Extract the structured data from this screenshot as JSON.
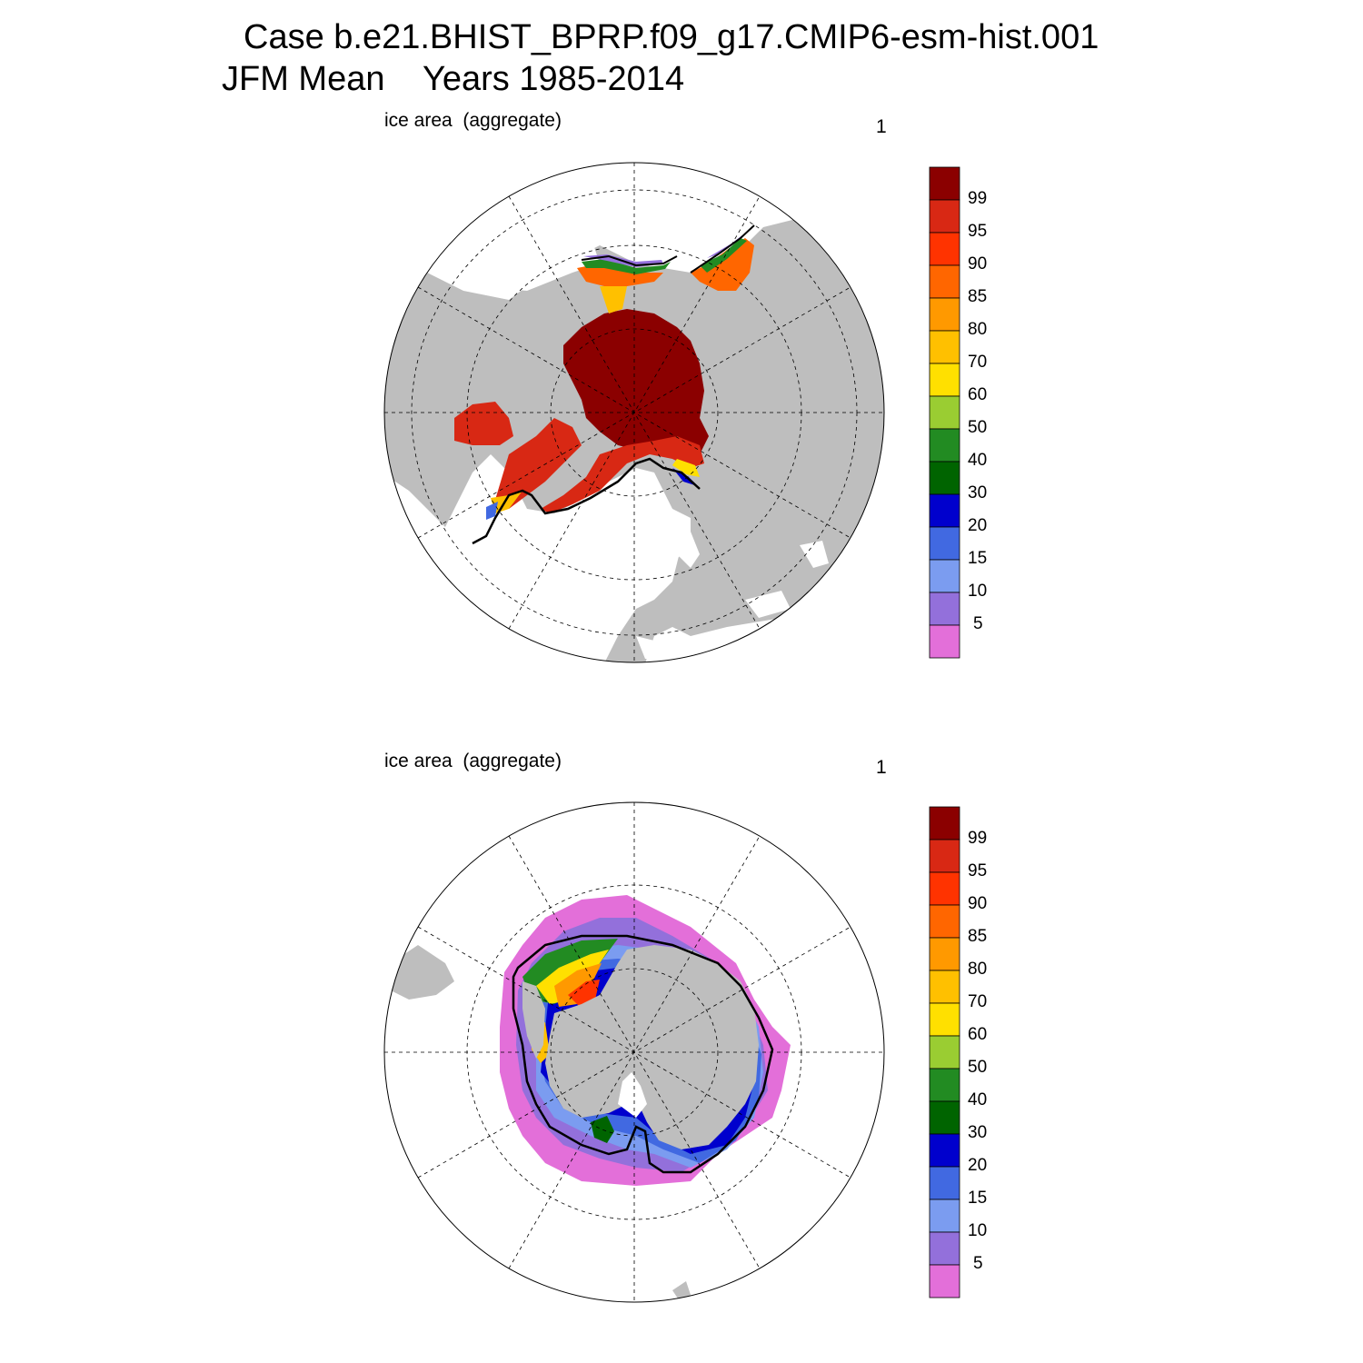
{
  "header": {
    "line1": "Case b.e21.BHIST_BPRP.f09_g17.CMIP6-esm-hist.001",
    "line2": "JFM Mean    Years 1985-2014"
  },
  "panels": [
    {
      "hemisphere": "north",
      "label": "ice area  (aggregate)",
      "number": "1"
    },
    {
      "hemisphere": "south",
      "label": "ice area  (aggregate)",
      "number": "1"
    }
  ],
  "colorbar": {
    "labels": [
      "99",
      "95",
      "90",
      "85",
      "80",
      "70",
      "60",
      "50",
      "40",
      "30",
      "20",
      "15",
      "10",
      "5"
    ],
    "colors": [
      "#8b0000",
      "#d82814",
      "#ff3300",
      "#ff6600",
      "#ff9900",
      "#ffc000",
      "#ffe000",
      "#9acd32",
      "#228b22",
      "#006400",
      "#0000cd",
      "#4169e1",
      "#7b9cf0",
      "#9370db",
      "#e36fd9"
    ]
  },
  "colors": {
    "land": "#bebebe",
    "ocean": "#ffffff",
    "grid": "#000000",
    "contour": "#000000"
  }
}
